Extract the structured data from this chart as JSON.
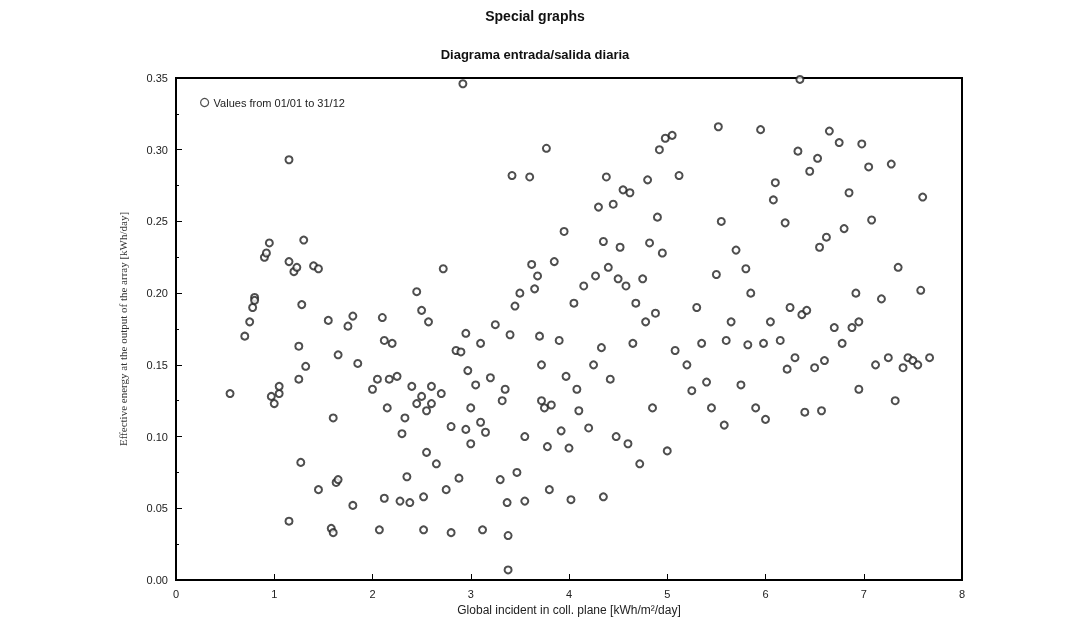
{
  "chart_data": {
    "type": "scatter",
    "title": "Special graphs",
    "subtitle": "Diagrama entrada/salida diaria",
    "xlabel": "Global incident in coll. plane [kWh/m²/day]",
    "ylabel": "Effective energy at the output of the array [kWh/day]",
    "xlim": [
      0,
      8
    ],
    "xticks": [
      0,
      1,
      2,
      3,
      4,
      5,
      6,
      7,
      8
    ],
    "ylim": [
      0,
      0.35
    ],
    "yticks": [
      {
        "value": 0,
        "label": "0.00"
      },
      {
        "value": 0.05,
        "label": "0.05"
      },
      {
        "value": 0.1,
        "label": "0.10"
      },
      {
        "value": 0.15,
        "label": "0.15"
      },
      {
        "value": 0.2,
        "label": "0.20"
      },
      {
        "value": 0.25,
        "label": "0.25"
      },
      {
        "value": 0.3,
        "label": "0.30"
      },
      {
        "value": 0.35,
        "label": "0.35"
      }
    ],
    "grid": false,
    "legend": "top left",
    "marker": "circle",
    "series": [
      {
        "name": "Values from 01/01 to 31/12",
        "color": "#222222",
        "x": [
          0.55,
          0.7,
          0.75,
          0.78,
          0.8,
          0.8,
          0.9,
          0.92,
          0.95,
          0.97,
          1.0,
          1.05,
          1.05,
          1.15,
          1.15,
          1.15,
          1.2,
          1.23,
          1.25,
          1.25,
          1.27,
          1.28,
          1.3,
          1.32,
          1.4,
          1.45,
          1.45,
          1.55,
          1.58,
          1.6,
          1.6,
          1.63,
          1.65,
          1.65,
          1.75,
          1.8,
          1.8,
          1.85,
          2.0,
          2.05,
          2.07,
          2.1,
          2.12,
          2.12,
          2.15,
          2.17,
          2.2,
          2.25,
          2.28,
          2.3,
          2.33,
          2.35,
          2.38,
          2.4,
          2.45,
          2.45,
          2.5,
          2.5,
          2.52,
          2.52,
          2.55,
          2.55,
          2.57,
          2.6,
          2.6,
          2.65,
          2.7,
          2.72,
          2.75,
          2.8,
          2.8,
          2.85,
          2.88,
          2.9,
          2.92,
          2.95,
          2.95,
          2.97,
          3.0,
          3.0,
          3.05,
          3.1,
          3.1,
          3.12,
          3.15,
          3.2,
          3.25,
          3.3,
          3.32,
          3.35,
          3.37,
          3.38,
          3.38,
          3.4,
          3.42,
          3.45,
          3.47,
          3.5,
          3.55,
          3.55,
          3.6,
          3.62,
          3.65,
          3.68,
          3.7,
          3.72,
          3.72,
          3.75,
          3.77,
          3.78,
          3.8,
          3.82,
          3.85,
          3.9,
          3.92,
          3.95,
          3.97,
          4.0,
          4.02,
          4.05,
          4.08,
          4.1,
          4.15,
          4.2,
          4.25,
          4.27,
          4.3,
          4.33,
          4.35,
          4.35,
          4.38,
          4.4,
          4.42,
          4.45,
          4.48,
          4.5,
          4.52,
          4.55,
          4.58,
          4.6,
          4.62,
          4.65,
          4.68,
          4.72,
          4.75,
          4.78,
          4.8,
          4.82,
          4.85,
          4.88,
          4.9,
          4.92,
          4.95,
          4.98,
          5.0,
          5.05,
          5.08,
          5.12,
          5.2,
          5.25,
          5.3,
          5.35,
          5.4,
          5.45,
          5.5,
          5.52,
          5.55,
          5.58,
          5.6,
          5.65,
          5.7,
          5.75,
          5.8,
          5.82,
          5.85,
          5.9,
          5.95,
          5.98,
          6.0,
          6.05,
          6.08,
          6.1,
          6.15,
          6.2,
          6.22,
          6.25,
          6.3,
          6.33,
          6.35,
          6.37,
          6.4,
          6.42,
          6.45,
          6.5,
          6.53,
          6.55,
          6.57,
          6.6,
          6.62,
          6.65,
          6.7,
          6.75,
          6.78,
          6.8,
          6.85,
          6.88,
          6.92,
          6.95,
          6.95,
          6.98,
          7.05,
          7.08,
          7.12,
          7.18,
          7.25,
          7.28,
          7.32,
          7.35,
          7.4,
          7.45,
          7.5,
          7.55,
          7.58,
          7.6,
          7.67
        ],
        "values": [
          0.13,
          0.17,
          0.18,
          0.19,
          0.197,
          0.195,
          0.225,
          0.228,
          0.235,
          0.128,
          0.123,
          0.13,
          0.135,
          0.293,
          0.222,
          0.041,
          0.215,
          0.218,
          0.163,
          0.14,
          0.082,
          0.192,
          0.237,
          0.149,
          0.219,
          0.217,
          0.063,
          0.181,
          0.036,
          0.033,
          0.113,
          0.068,
          0.07,
          0.157,
          0.177,
          0.184,
          0.052,
          0.151,
          0.133,
          0.14,
          0.035,
          0.183,
          0.167,
          0.057,
          0.12,
          0.14,
          0.165,
          0.142,
          0.055,
          0.102,
          0.113,
          0.072,
          0.054,
          0.135,
          0.201,
          0.123,
          0.188,
          0.128,
          0.058,
          0.035,
          0.089,
          0.118,
          0.18,
          0.135,
          0.123,
          0.081,
          0.13,
          0.217,
          0.063,
          0.107,
          0.033,
          0.16,
          0.071,
          0.159,
          0.346,
          0.172,
          0.105,
          0.146,
          0.12,
          0.095,
          0.136,
          0.11,
          0.165,
          0.035,
          0.103,
          0.141,
          0.178,
          0.07,
          0.125,
          0.133,
          0.054,
          0.031,
          0.007,
          0.171,
          0.282,
          0.191,
          0.075,
          0.2,
          0.1,
          0.055,
          0.281,
          0.22,
          0.203,
          0.212,
          0.17,
          0.125,
          0.15,
          0.12,
          0.301,
          0.093,
          0.063,
          0.122,
          0.222,
          0.167,
          0.104,
          0.243,
          0.142,
          0.092,
          0.056,
          0.193,
          0.133,
          0.118,
          0.205,
          0.106,
          0.15,
          0.212,
          0.26,
          0.162,
          0.236,
          0.058,
          0.281,
          0.218,
          0.14,
          0.262,
          0.1,
          0.21,
          0.232,
          0.272,
          0.205,
          0.095,
          0.27,
          0.165,
          0.193,
          0.081,
          0.21,
          0.18,
          0.279,
          0.235,
          0.12,
          0.186,
          0.253,
          0.3,
          0.228,
          0.308,
          0.09,
          0.31,
          0.16,
          0.282,
          0.15,
          0.132,
          0.19,
          0.165,
          0.138,
          0.12,
          0.213,
          0.316,
          0.25,
          0.108,
          0.167,
          0.18,
          0.23,
          0.136,
          0.217,
          0.164,
          0.2,
          0.12,
          0.314,
          0.165,
          0.112,
          0.18,
          0.265,
          0.277,
          0.167,
          0.249,
          0.147,
          0.19,
          0.155,
          0.299,
          0.349,
          0.185,
          0.117,
          0.188,
          0.285,
          0.148,
          0.294,
          0.232,
          0.118,
          0.153,
          0.239,
          0.313,
          0.176,
          0.305,
          0.165,
          0.245,
          0.27,
          0.176,
          0.2,
          0.18,
          0.133,
          0.304,
          0.288,
          0.251,
          0.15,
          0.196,
          0.155,
          0.29,
          0.125,
          0.218,
          0.148,
          0.155,
          0.153,
          0.15,
          0.202,
          0.267,
          0.155
        ]
      }
    ]
  }
}
